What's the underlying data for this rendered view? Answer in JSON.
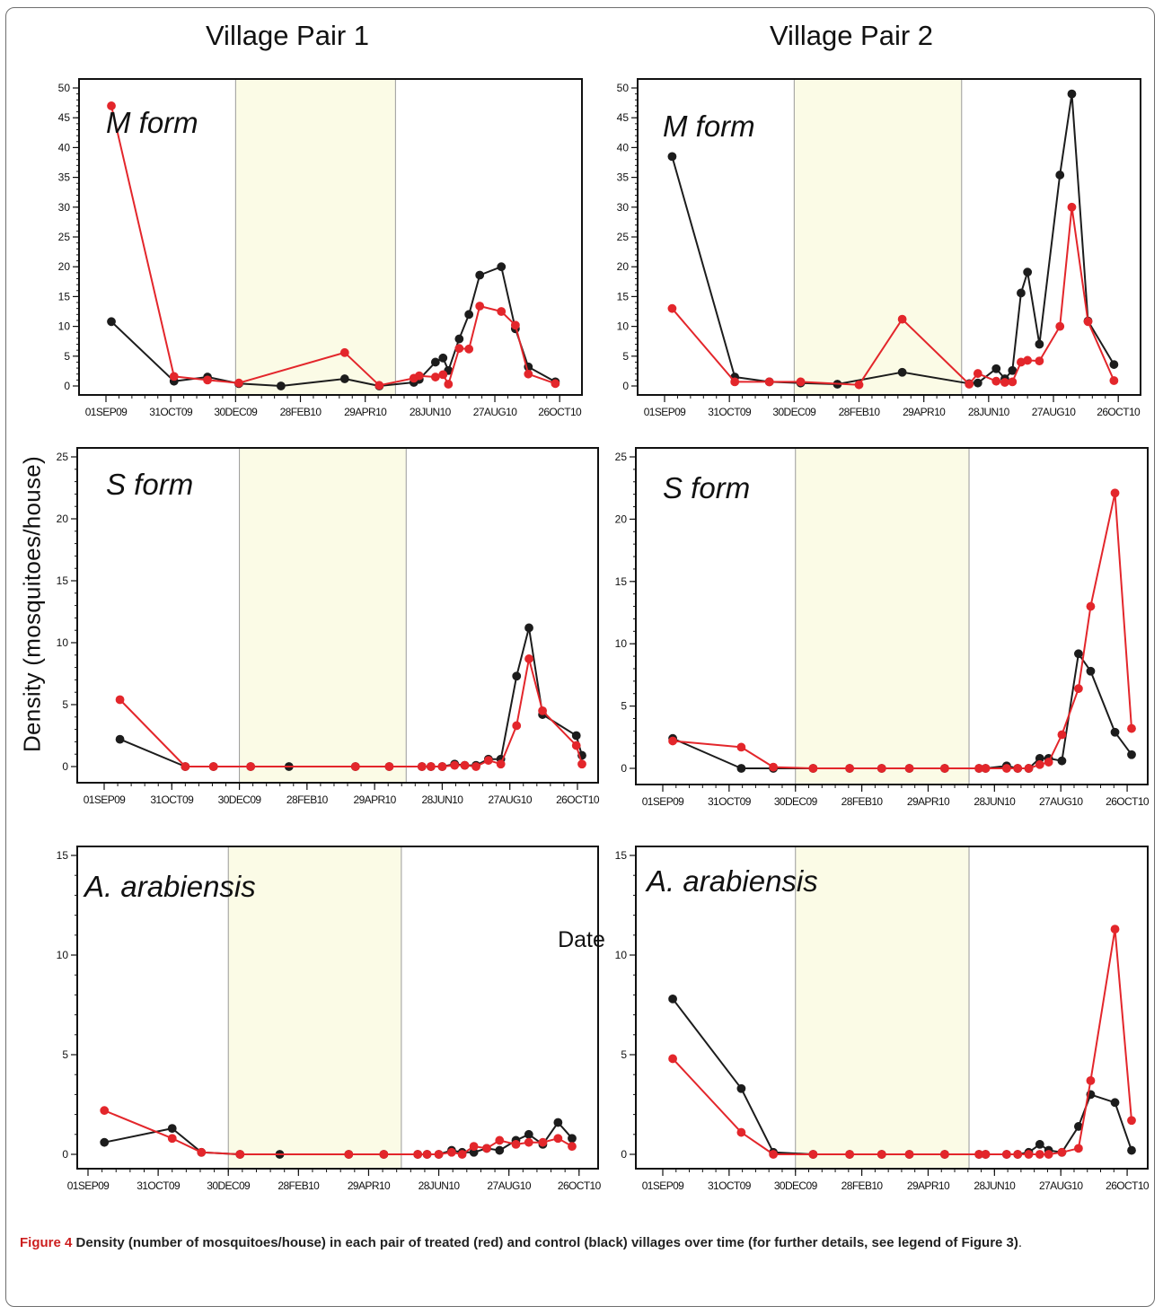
{
  "figure": {
    "column_titles": [
      "Village Pair 1",
      "Village Pair 2"
    ],
    "y_title": "Density  (mosquitoes/house)",
    "x_title": "Date",
    "caption_label": "Figure 4",
    "caption_text": "Density (number of mosquitoes/house) in each pair of treated (red) and control (black) villages over time (for further details, see legend of Figure 3)",
    "caption_end": "."
  },
  "colors": {
    "treated": "#e3262b",
    "control": "#1c1c1c",
    "shade": "#fbfbe6",
    "shade_border": "#9a9a9a"
  },
  "chart_data": [
    {
      "type": "line",
      "panel": "Village Pair 1",
      "label": "M form",
      "xlim": [
        "2009-09-01",
        "2010-10-30"
      ],
      "x_ticks": [
        "01SEP09",
        "31OCT09",
        "30DEC09",
        "28FEB10",
        "29APR10",
        "28JUN10",
        "27AUG10",
        "26OCT10"
      ],
      "ylim": [
        0,
        50
      ],
      "y_ticks": [
        0,
        5,
        10,
        15,
        20,
        25,
        30,
        35,
        40,
        45,
        50
      ],
      "shaded_range": [
        "2009-12-30",
        "2010-05-27"
      ],
      "series": [
        {
          "color_key": "control",
          "x": [
            "2009-09-06",
            "2009-11-03",
            "2009-12-04",
            "2010-01-02",
            "2010-02-10",
            "2010-04-10",
            "2010-05-12",
            "2010-06-13",
            "2010-06-18",
            "2010-07-03",
            "2010-07-10",
            "2010-07-15",
            "2010-07-25",
            "2010-08-03",
            "2010-08-13",
            "2010-09-02",
            "2010-09-15",
            "2010-09-27",
            "2010-10-22"
          ],
          "y": [
            10.8,
            0.8,
            1.5,
            0.4,
            0,
            1.2,
            0,
            0.6,
            1.1,
            4.0,
            4.7,
            2.6,
            7.9,
            12.0,
            18.6,
            20.0,
            9.6,
            3.2,
            0.7
          ]
        },
        {
          "color_key": "treated",
          "x": [
            "2009-09-06",
            "2009-11-03",
            "2009-12-04",
            "2010-01-02",
            "2010-04-10",
            "2010-05-12",
            "2010-06-13",
            "2010-06-18",
            "2010-07-03",
            "2010-07-10",
            "2010-07-15",
            "2010-07-25",
            "2010-08-03",
            "2010-08-13",
            "2010-09-02",
            "2010-09-15",
            "2010-09-27",
            "2010-10-22"
          ],
          "y": [
            47.0,
            1.6,
            1.0,
            0.5,
            5.6,
            0.1,
            1.3,
            1.7,
            1.5,
            1.9,
            0.3,
            6.3,
            6.2,
            13.4,
            12.5,
            10.2,
            2.0,
            0.4
          ]
        }
      ]
    },
    {
      "type": "line",
      "panel": "Village Pair 2",
      "label": "M form",
      "xlim": [
        "2009-09-01",
        "2010-10-30"
      ],
      "x_ticks": [
        "01SEP09",
        "31OCT09",
        "30DEC09",
        "28FEB10",
        "29APR10",
        "28JUN10",
        "27AUG10",
        "26OCT10"
      ],
      "ylim": [
        0,
        50
      ],
      "y_ticks": [
        0,
        5,
        10,
        15,
        20,
        25,
        30,
        35,
        40,
        45,
        50
      ],
      "shaded_range": [
        "2009-12-30",
        "2010-06-03"
      ],
      "series": [
        {
          "color_key": "control",
          "x": [
            "2009-09-08",
            "2009-11-05",
            "2009-12-07",
            "2010-01-05",
            "2010-02-08",
            "2010-04-09",
            "2010-06-10",
            "2010-06-18",
            "2010-07-05",
            "2010-07-13",
            "2010-07-20",
            "2010-07-28",
            "2010-08-03",
            "2010-08-14",
            "2010-09-02",
            "2010-09-13",
            "2010-09-28",
            "2010-10-22"
          ],
          "y": [
            38.5,
            1.5,
            0.7,
            0.5,
            0.3,
            2.3,
            0.4,
            0.5,
            2.9,
            1.2,
            2.6,
            15.6,
            19.1,
            7.0,
            35.4,
            49.0,
            10.9,
            3.6
          ]
        },
        {
          "color_key": "treated",
          "x": [
            "2009-09-08",
            "2009-11-05",
            "2009-12-07",
            "2010-01-05",
            "2010-02-28",
            "2010-04-09",
            "2010-06-10",
            "2010-06-18",
            "2010-07-05",
            "2010-07-13",
            "2010-07-20",
            "2010-07-28",
            "2010-08-03",
            "2010-08-14",
            "2010-09-02",
            "2010-09-13",
            "2010-09-28",
            "2010-10-22"
          ],
          "y": [
            13.0,
            0.7,
            0.7,
            0.7,
            0.2,
            11.2,
            0.3,
            2.1,
            0.8,
            0.6,
            0.7,
            4.0,
            4.3,
            4.2,
            10.0,
            30.0,
            10.8,
            0.9
          ]
        }
      ]
    },
    {
      "type": "line",
      "panel": "Village Pair 1",
      "label": "S form",
      "xlim": [
        "2009-09-01",
        "2010-10-30"
      ],
      "x_ticks": [
        "01SEP09",
        "31OCT09",
        "30DEC09",
        "28FEB10",
        "29APR10",
        "28JUN10",
        "27AUG10",
        "26OCT10"
      ],
      "ylim": [
        0,
        25
      ],
      "y_ticks": [
        0,
        5,
        10,
        15,
        20,
        25
      ],
      "shaded_range": [
        "2009-12-30",
        "2010-05-27"
      ],
      "series": [
        {
          "color_key": "control",
          "x": [
            "2009-09-15",
            "2009-11-12",
            "2009-12-07",
            "2010-01-09",
            "2010-02-12",
            "2010-04-12",
            "2010-05-12",
            "2010-06-10",
            "2010-06-18",
            "2010-06-28",
            "2010-07-09",
            "2010-07-18",
            "2010-07-28",
            "2010-08-08",
            "2010-08-19",
            "2010-09-02",
            "2010-09-13",
            "2010-09-25",
            "2010-10-25",
            "2010-10-30"
          ],
          "y": [
            2.2,
            0,
            0,
            0,
            0,
            0,
            0,
            0,
            0,
            0,
            0.2,
            0.1,
            0.1,
            0.6,
            0.6,
            7.3,
            11.2,
            4.2,
            2.5,
            0.9
          ]
        },
        {
          "color_key": "treated",
          "x": [
            "2009-09-15",
            "2009-11-12",
            "2009-12-07",
            "2010-01-09",
            "2010-04-12",
            "2010-05-12",
            "2010-06-10",
            "2010-06-18",
            "2010-06-28",
            "2010-07-09",
            "2010-07-18",
            "2010-07-28",
            "2010-08-08",
            "2010-08-19",
            "2010-09-02",
            "2010-09-13",
            "2010-09-25",
            "2010-10-25",
            "2010-10-30"
          ],
          "y": [
            5.4,
            0,
            0,
            0,
            0,
            0,
            0,
            0,
            0,
            0.1,
            0.1,
            0,
            0.5,
            0.2,
            3.3,
            8.7,
            4.5,
            1.7,
            0.2
          ]
        }
      ]
    },
    {
      "type": "line",
      "panel": "Village Pair 2",
      "label": "S form",
      "xlim": [
        "2009-09-01",
        "2010-10-30"
      ],
      "x_ticks": [
        "01SEP09",
        "31OCT09",
        "30DEC09",
        "28FEB10",
        "29APR10",
        "28JUN10",
        "27AUG10",
        "26OCT10"
      ],
      "ylim": [
        0,
        25
      ],
      "y_ticks": [
        0,
        5,
        10,
        15,
        20,
        25
      ],
      "shaded_range": [
        "2009-12-30",
        "2010-06-05"
      ],
      "series": [
        {
          "color_key": "control",
          "x": [
            "2009-09-10",
            "2009-11-11",
            "2009-12-10",
            "2010-01-15",
            "2010-02-17",
            "2010-03-18",
            "2010-04-12",
            "2010-05-14",
            "2010-06-14",
            "2010-06-20",
            "2010-07-09",
            "2010-07-19",
            "2010-07-29",
            "2010-08-08",
            "2010-08-16",
            "2010-08-28",
            "2010-09-12",
            "2010-09-23",
            "2010-10-15",
            "2010-10-30"
          ],
          "y": [
            2.4,
            0,
            0,
            0,
            0,
            0,
            0,
            0,
            0,
            0,
            0.2,
            0,
            0,
            0.8,
            0.8,
            0.6,
            9.2,
            7.8,
            2.9,
            1.1
          ]
        },
        {
          "color_key": "treated",
          "x": [
            "2009-09-10",
            "2009-11-11",
            "2009-12-10",
            "2010-01-15",
            "2010-02-17",
            "2010-03-18",
            "2010-04-12",
            "2010-05-14",
            "2010-06-14",
            "2010-06-20",
            "2010-07-09",
            "2010-07-19",
            "2010-07-29",
            "2010-08-08",
            "2010-08-16",
            "2010-08-28",
            "2010-09-12",
            "2010-09-23",
            "2010-10-15",
            "2010-10-30"
          ],
          "y": [
            2.2,
            1.7,
            0.1,
            0,
            0,
            0,
            0,
            0,
            0,
            0,
            0,
            0,
            0,
            0.3,
            0.5,
            2.7,
            6.4,
            13.0,
            22.1,
            3.2
          ]
        }
      ]
    },
    {
      "type": "line",
      "panel": "Village Pair 1",
      "label": "A. arabiensis",
      "xlim": [
        "2009-09-01",
        "2010-10-30"
      ],
      "x_ticks": [
        "01SEP09",
        "31OCT09",
        "30DEC09",
        "28FEB10",
        "29APR10",
        "28JUN10",
        "27AUG10",
        "26OCT10"
      ],
      "ylim": [
        0,
        15
      ],
      "y_ticks": [
        0,
        5,
        10,
        15
      ],
      "shaded_range": [
        "2009-12-30",
        "2010-05-27"
      ],
      "series": [
        {
          "color_key": "control",
          "x": [
            "2009-09-15",
            "2009-11-12",
            "2009-12-07",
            "2010-01-09",
            "2010-02-12",
            "2010-04-12",
            "2010-05-12",
            "2010-06-10",
            "2010-06-18",
            "2010-06-28",
            "2010-07-09",
            "2010-07-18",
            "2010-07-28",
            "2010-08-08",
            "2010-08-19",
            "2010-09-02",
            "2010-09-13",
            "2010-09-25",
            "2010-10-08",
            "2010-10-20"
          ],
          "y": [
            0.6,
            1.3,
            0.1,
            0,
            0,
            0,
            0,
            0,
            0,
            0,
            0.2,
            0.1,
            0.1,
            0.3,
            0.2,
            0.7,
            1.0,
            0.5,
            1.6,
            0.8
          ]
        },
        {
          "color_key": "treated",
          "x": [
            "2009-09-15",
            "2009-11-12",
            "2009-12-07",
            "2010-01-09",
            "2010-04-12",
            "2010-05-12",
            "2010-06-10",
            "2010-06-18",
            "2010-06-28",
            "2010-07-09",
            "2010-07-18",
            "2010-07-28",
            "2010-08-08",
            "2010-08-19",
            "2010-09-02",
            "2010-09-13",
            "2010-09-25",
            "2010-10-08",
            "2010-10-20"
          ],
          "y": [
            2.2,
            0.8,
            0.1,
            0,
            0,
            0,
            0,
            0,
            0,
            0.1,
            0,
            0.4,
            0.3,
            0.7,
            0.5,
            0.6,
            0.6,
            0.8,
            0.4
          ]
        }
      ]
    },
    {
      "type": "line",
      "panel": "Village Pair 2",
      "label": "A. arabiensis",
      "xlim": [
        "2009-09-01",
        "2010-10-30"
      ],
      "x_ticks": [
        "01SEP09",
        "31OCT09",
        "30DEC09",
        "28FEB10",
        "29APR10",
        "28JUN10",
        "27AUG10",
        "26OCT10"
      ],
      "ylim": [
        0,
        15
      ],
      "y_ticks": [
        0,
        5,
        10,
        15
      ],
      "shaded_range": [
        "2009-12-30",
        "2010-06-05"
      ],
      "series": [
        {
          "color_key": "control",
          "x": [
            "2009-09-10",
            "2009-11-11",
            "2009-12-10",
            "2010-01-15",
            "2010-02-17",
            "2010-03-18",
            "2010-04-12",
            "2010-05-14",
            "2010-06-14",
            "2010-06-20",
            "2010-07-09",
            "2010-07-19",
            "2010-07-29",
            "2010-08-08",
            "2010-08-16",
            "2010-08-28",
            "2010-09-12",
            "2010-09-23",
            "2010-10-15",
            "2010-10-30"
          ],
          "y": [
            7.8,
            3.3,
            0.1,
            0,
            0,
            0,
            0,
            0,
            0,
            0,
            0,
            0,
            0.1,
            0.5,
            0.2,
            0.1,
            1.4,
            3.0,
            2.6,
            0.2
          ]
        },
        {
          "color_key": "treated",
          "x": [
            "2009-09-10",
            "2009-11-11",
            "2009-12-10",
            "2010-01-15",
            "2010-02-17",
            "2010-03-18",
            "2010-04-12",
            "2010-05-14",
            "2010-06-14",
            "2010-06-20",
            "2010-07-09",
            "2010-07-19",
            "2010-07-29",
            "2010-08-08",
            "2010-08-16",
            "2010-08-28",
            "2010-09-12",
            "2010-09-23",
            "2010-10-15",
            "2010-10-30"
          ],
          "y": [
            4.8,
            1.1,
            0,
            0,
            0,
            0,
            0,
            0,
            0,
            0,
            0,
            0,
            0,
            0,
            0,
            0.1,
            0.3,
            3.7,
            11.3,
            1.7
          ]
        }
      ]
    }
  ]
}
